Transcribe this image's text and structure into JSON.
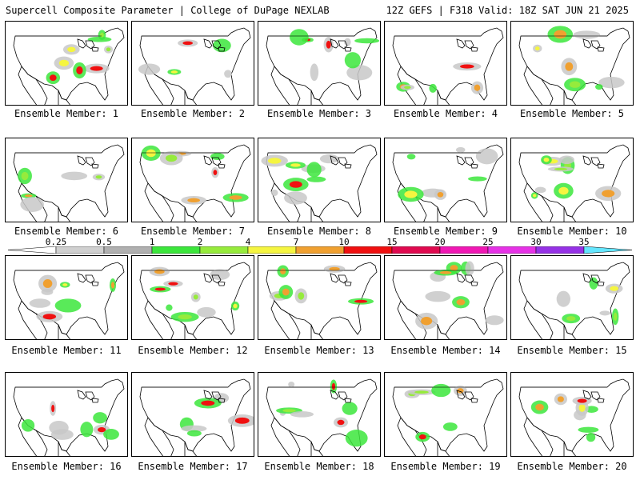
{
  "header": {
    "title": "Supercell Composite Parameter | College of DuPage NEXLAB",
    "valid": "12Z GEFS | F318 Valid: 18Z SAT JUN 21 2025"
  },
  "colorbar": {
    "labels": [
      "0.25",
      "0.5",
      "1",
      "2",
      "4",
      "7",
      "10",
      "15",
      "20",
      "25",
      "30",
      "35"
    ],
    "colors": [
      "#d0d0d0",
      "#b0b0b0",
      "#3ce63c",
      "#96eb3c",
      "#f5f540",
      "#f0a030",
      "#f01010",
      "#e00a50",
      "#f018b4",
      "#e632e6",
      "#9632e6",
      "#64e6ff"
    ]
  },
  "panels": [
    {
      "label": "Ensemble Member: 1"
    },
    {
      "label": "Ensemble Member: 2"
    },
    {
      "label": "Ensemble Member: 3"
    },
    {
      "label": "Ensemble Member: 4"
    },
    {
      "label": "Ensemble Member: 5"
    },
    {
      "label": "Ensemble Member: 6"
    },
    {
      "label": "Ensemble Member: 7"
    },
    {
      "label": "Ensemble Member: 8"
    },
    {
      "label": "Ensemble Member: 9"
    },
    {
      "label": "Ensemble Member: 10"
    },
    {
      "label": "Ensemble Member: 11"
    },
    {
      "label": "Ensemble Member: 12"
    },
    {
      "label": "Ensemble Member: 13"
    },
    {
      "label": "Ensemble Member: 14"
    },
    {
      "label": "Ensemble Member: 15"
    },
    {
      "label": "Ensemble Member: 16"
    },
    {
      "label": "Ensemble Member: 17"
    },
    {
      "label": "Ensemble Member: 18"
    },
    {
      "label": "Ensemble Member: 19"
    },
    {
      "label": "Ensemble Member: 20"
    }
  ]
}
